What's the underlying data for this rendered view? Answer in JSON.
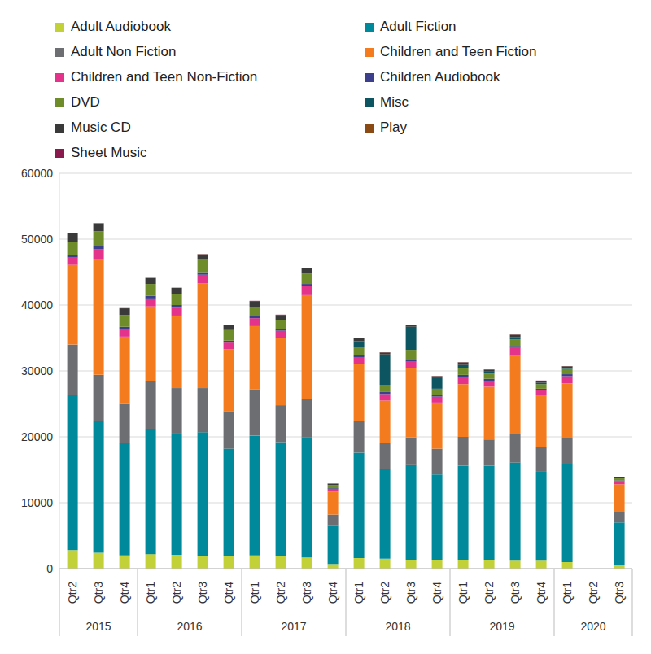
{
  "chart_data": {
    "type": "bar",
    "stacked": true,
    "grid": true,
    "legend": "top",
    "categories": [
      "Qtr2",
      "Qtr3",
      "Qtr4",
      "Qtr1",
      "Qtr2",
      "Qtr3",
      "Qtr4",
      "Qtr1",
      "Qtr2",
      "Qtr3",
      "Qtr4",
      "Qtr1",
      "Qtr2",
      "Qtr3",
      "Qtr4",
      "Qtr1",
      "Qtr2",
      "Qtr3",
      "Qtr4",
      "Qtr1",
      "Qtr2",
      "Qtr3"
    ],
    "category_groups": [
      "2015",
      "2015",
      "2015",
      "2016",
      "2016",
      "2016",
      "2016",
      "2017",
      "2017",
      "2017",
      "2017",
      "2018",
      "2018",
      "2018",
      "2018",
      "2019",
      "2019",
      "2019",
      "2019",
      "2020",
      "2020",
      "2020"
    ],
    "ylim": [
      0,
      60000
    ],
    "yticks": [
      0,
      10000,
      20000,
      30000,
      40000,
      50000,
      60000
    ],
    "series": [
      {
        "name": "Adult Audiobook",
        "color": "#c3d139",
        "values": [
          2800,
          2400,
          2000,
          2200,
          2100,
          1900,
          1900,
          2000,
          1900,
          1700,
          700,
          1600,
          1500,
          1300,
          1300,
          1300,
          1300,
          1200,
          1200,
          1000,
          0,
          500
        ]
      },
      {
        "name": "Adult Fiction",
        "color": "#00899b",
        "values": [
          23600,
          20000,
          17000,
          19000,
          18400,
          18800,
          16300,
          18200,
          17300,
          18200,
          5800,
          16000,
          13600,
          14400,
          13000,
          14300,
          14300,
          14900,
          13500,
          14800,
          0,
          6500
        ]
      },
      {
        "name": "Adult Non Fiction",
        "color": "#6d6e71",
        "values": [
          7600,
          7000,
          6000,
          7300,
          6900,
          6700,
          5700,
          7000,
          5600,
          5900,
          1700,
          4800,
          4000,
          4200,
          3900,
          4400,
          4000,
          4400,
          3800,
          4000,
          0,
          1600
        ]
      },
      {
        "name": "Children and Teen Fiction",
        "color": "#f47c1f",
        "values": [
          12100,
          17600,
          10200,
          11300,
          11000,
          15900,
          9400,
          9600,
          10200,
          15700,
          3500,
          8600,
          6400,
          10500,
          7000,
          8000,
          8000,
          11800,
          7800,
          8300,
          0,
          4200
        ]
      },
      {
        "name": "Children and Teen Non-Fiction",
        "color": "#e3338b",
        "values": [
          1100,
          1500,
          1100,
          1200,
          1200,
          1300,
          1000,
          1200,
          1100,
          1400,
          400,
          1100,
          1000,
          1000,
          900,
          1100,
          900,
          1200,
          800,
          1100,
          0,
          500
        ]
      },
      {
        "name": "Children Audiobook",
        "color": "#3b3f8c",
        "values": [
          400,
          400,
          400,
          400,
          400,
          400,
          300,
          300,
          300,
          300,
          100,
          300,
          300,
          300,
          200,
          300,
          300,
          300,
          200,
          300,
          0,
          100
        ]
      },
      {
        "name": "DVD",
        "color": "#6f8c2b",
        "values": [
          2000,
          2300,
          1800,
          1800,
          1700,
          2000,
          1600,
          1400,
          1300,
          1600,
          500,
          1200,
          1100,
          1500,
          1000,
          1000,
          800,
          1000,
          700,
          800,
          0,
          300
        ]
      },
      {
        "name": "Misc",
        "color": "#0d5560",
        "values": [
          0,
          0,
          0,
          0,
          0,
          0,
          0,
          0,
          0,
          0,
          0,
          900,
          4600,
          3500,
          1600,
          500,
          300,
          300,
          200,
          100,
          0,
          0
        ]
      },
      {
        "name": "Music CD",
        "color": "#3a3a3a",
        "values": [
          1300,
          1200,
          1000,
          900,
          900,
          700,
          800,
          900,
          800,
          800,
          200,
          500,
          300,
          300,
          300,
          400,
          300,
          400,
          300,
          300,
          0,
          200
        ]
      },
      {
        "name": "Play",
        "color": "#8b4a14",
        "values": [
          20,
          20,
          20,
          20,
          20,
          20,
          20,
          20,
          20,
          20,
          10,
          20,
          20,
          20,
          20,
          20,
          20,
          20,
          20,
          20,
          0,
          10
        ]
      },
      {
        "name": "Sheet Music",
        "color": "#8a1a4e",
        "values": [
          20,
          20,
          20,
          20,
          20,
          20,
          20,
          20,
          20,
          20,
          10,
          20,
          20,
          20,
          20,
          20,
          20,
          20,
          20,
          20,
          0,
          10
        ]
      }
    ]
  }
}
